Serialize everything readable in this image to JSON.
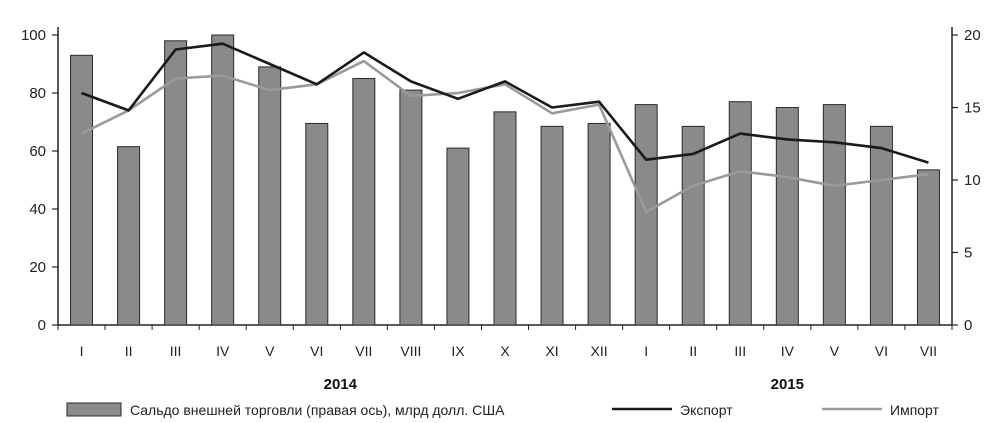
{
  "chart_data": {
    "type": "bar",
    "categories": [
      "I",
      "II",
      "III",
      "IV",
      "V",
      "VI",
      "VII",
      "VIII",
      "IX",
      "X",
      "XI",
      "XII",
      "I",
      "II",
      "III",
      "IV",
      "V",
      "VI",
      "VII"
    ],
    "year_labels": [
      {
        "label": "2014",
        "center_index": 5.5
      },
      {
        "label": "2015",
        "center_index": 15
      }
    ],
    "left_axis": {
      "ylim": [
        0,
        100
      ],
      "ticks": [
        "0",
        "20",
        "40",
        "60",
        "80",
        "100"
      ]
    },
    "right_axis": {
      "ylim": [
        0,
        20
      ],
      "ticks": [
        "0",
        "5",
        "10",
        "15",
        "20"
      ]
    },
    "series": [
      {
        "name": "Сальдо внешней торговли (правая ось), млрд долл. США",
        "kind": "bar",
        "axis": "right",
        "color": "#8a8a8a",
        "values": [
          18.6,
          12.3,
          19.6,
          20.0,
          17.8,
          13.9,
          17.0,
          16.2,
          12.2,
          14.7,
          13.7,
          13.9,
          15.2,
          13.7,
          15.4,
          15.0,
          15.2,
          13.7,
          10.7
        ]
      },
      {
        "name": "Экспорт",
        "kind": "line",
        "axis": "left",
        "color": "#1a1a1a",
        "values": [
          80,
          74,
          95,
          97,
          90,
          83,
          94,
          84,
          78,
          84,
          75,
          77,
          57,
          59,
          66,
          64,
          63,
          61,
          56
        ]
      },
      {
        "name": "Импорт",
        "kind": "line",
        "axis": "left",
        "color": "#9a9a9a",
        "values": [
          66,
          74,
          85,
          86,
          81,
          83,
          91,
          79,
          80,
          83,
          73,
          76,
          39,
          48,
          53,
          51,
          48,
          50,
          52
        ]
      }
    ]
  }
}
